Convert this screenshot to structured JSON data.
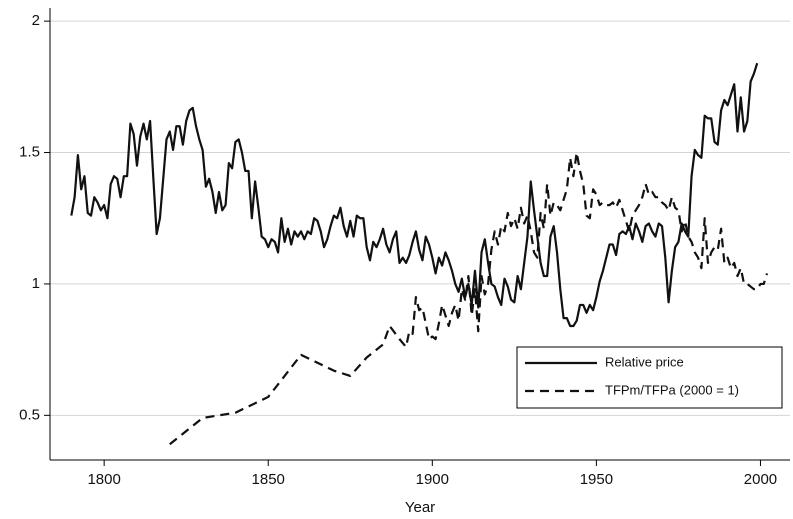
{
  "chart_data": {
    "type": "line",
    "x_label": "Year",
    "xlim": [
      1783.5,
      2009
    ],
    "ylim": [
      0.33,
      2.05
    ],
    "xticks": [
      1800,
      1850,
      1900,
      1950,
      2000
    ],
    "yticks": [
      0.5,
      1,
      1.5,
      2
    ],
    "grid": true,
    "legend": "lower right",
    "series": [
      {
        "name": "Relative price",
        "color": "#111111",
        "dash": "solid",
        "x": [
          1790,
          1791,
          1792,
          1793,
          1794,
          1795,
          1796,
          1797,
          1798,
          1799,
          1800,
          1801,
          1802,
          1803,
          1804,
          1805,
          1806,
          1807,
          1808,
          1809,
          1810,
          1811,
          1812,
          1813,
          1814,
          1815,
          1816,
          1817,
          1818,
          1819,
          1820,
          1821,
          1822,
          1823,
          1824,
          1825,
          1826,
          1827,
          1828,
          1829,
          1830,
          1831,
          1832,
          1833,
          1834,
          1835,
          1836,
          1837,
          1838,
          1839,
          1840,
          1841,
          1842,
          1843,
          1844,
          1845,
          1846,
          1847,
          1848,
          1849,
          1850,
          1851,
          1852,
          1853,
          1854,
          1855,
          1856,
          1857,
          1858,
          1859,
          1860,
          1861,
          1862,
          1863,
          1864,
          1865,
          1866,
          1867,
          1868,
          1869,
          1870,
          1871,
          1872,
          1873,
          1874,
          1875,
          1876,
          1877,
          1878,
          1879,
          1880,
          1881,
          1882,
          1883,
          1884,
          1885,
          1886,
          1887,
          1888,
          1889,
          1890,
          1891,
          1892,
          1893,
          1894,
          1895,
          1896,
          1897,
          1898,
          1899,
          1900,
          1901,
          1902,
          1903,
          1904,
          1905,
          1906,
          1907,
          1908,
          1909,
          1910,
          1911,
          1912,
          1913,
          1914,
          1915,
          1916,
          1917,
          1918,
          1919,
          1920,
          1921,
          1922,
          1923,
          1924,
          1925,
          1926,
          1927,
          1928,
          1929,
          1930,
          1931,
          1932,
          1933,
          1934,
          1935,
          1936,
          1937,
          1938,
          1939,
          1940,
          1941,
          1942,
          1943,
          1944,
          1945,
          1946,
          1947,
          1948,
          1949,
          1950,
          1951,
          1952,
          1953,
          1954,
          1955,
          1956,
          1957,
          1958,
          1959,
          1960,
          1961,
          1962,
          1963,
          1964,
          1965,
          1966,
          1967,
          1968,
          1969,
          1970,
          1971,
          1972,
          1973,
          1974,
          1975,
          1976,
          1977,
          1978,
          1979,
          1980,
          1981,
          1982,
          1983,
          1984,
          1985,
          1986,
          1987,
          1988,
          1989,
          1990,
          1991,
          1992,
          1993,
          1994,
          1995,
          1996,
          1997,
          1998,
          1999
        ],
        "values": [
          1.26,
          1.33,
          1.49,
          1.36,
          1.41,
          1.27,
          1.26,
          1.33,
          1.31,
          1.28,
          1.3,
          1.25,
          1.38,
          1.41,
          1.4,
          1.33,
          1.41,
          1.41,
          1.61,
          1.57,
          1.45,
          1.56,
          1.61,
          1.55,
          1.62,
          1.4,
          1.19,
          1.25,
          1.4,
          1.55,
          1.58,
          1.51,
          1.6,
          1.6,
          1.53,
          1.62,
          1.66,
          1.67,
          1.6,
          1.55,
          1.51,
          1.37,
          1.4,
          1.35,
          1.27,
          1.35,
          1.28,
          1.3,
          1.46,
          1.44,
          1.54,
          1.55,
          1.5,
          1.43,
          1.43,
          1.25,
          1.39,
          1.29,
          1.18,
          1.17,
          1.14,
          1.17,
          1.16,
          1.12,
          1.25,
          1.16,
          1.21,
          1.15,
          1.2,
          1.18,
          1.2,
          1.17,
          1.2,
          1.19,
          1.25,
          1.24,
          1.2,
          1.14,
          1.17,
          1.22,
          1.26,
          1.25,
          1.29,
          1.22,
          1.18,
          1.24,
          1.18,
          1.26,
          1.25,
          1.25,
          1.14,
          1.09,
          1.16,
          1.14,
          1.17,
          1.21,
          1.15,
          1.12,
          1.17,
          1.2,
          1.08,
          1.1,
          1.08,
          1.11,
          1.16,
          1.2,
          1.13,
          1.09,
          1.18,
          1.15,
          1.1,
          1.04,
          1.1,
          1.07,
          1.12,
          1.09,
          1.05,
          1.0,
          0.97,
          1.02,
          0.95,
          1.0,
          0.92,
          1.05,
          0.91,
          1.12,
          1.17,
          1.08,
          1.0,
          0.99,
          0.95,
          0.92,
          1.02,
          0.99,
          0.94,
          0.93,
          1.03,
          0.98,
          1.08,
          1.18,
          1.39,
          1.28,
          1.18,
          1.08,
          1.03,
          1.03,
          1.18,
          1.22,
          1.12,
          0.98,
          0.87,
          0.87,
          0.84,
          0.84,
          0.86,
          0.92,
          0.92,
          0.89,
          0.92,
          0.9,
          0.95,
          1.01,
          1.05,
          1.1,
          1.15,
          1.15,
          1.11,
          1.19,
          1.2,
          1.19,
          1.22,
          1.17,
          1.23,
          1.2,
          1.16,
          1.22,
          1.23,
          1.2,
          1.18,
          1.23,
          1.22,
          1.1,
          0.93,
          1.05,
          1.14,
          1.16,
          1.23,
          1.2,
          1.18,
          1.41,
          1.51,
          1.49,
          1.48,
          1.64,
          1.63,
          1.63,
          1.54,
          1.53,
          1.66,
          1.7,
          1.68,
          1.72,
          1.76,
          1.58,
          1.71,
          1.58,
          1.62,
          1.77,
          1.8,
          1.84
        ]
      },
      {
        "name": "TFPm/TFPa (2000 = 1)",
        "color": "#111111",
        "dash": "dashed",
        "x": [
          1820,
          1830,
          1840,
          1850,
          1860,
          1865,
          1870,
          1875,
          1880,
          1885,
          1887,
          1890,
          1892,
          1893,
          1894,
          1895,
          1896,
          1897,
          1898,
          1899,
          1900,
          1901,
          1902,
          1903,
          1904,
          1905,
          1906,
          1907,
          1908,
          1909,
          1910,
          1911,
          1912,
          1913,
          1914,
          1915,
          1916,
          1917,
          1918,
          1919,
          1920,
          1921,
          1922,
          1923,
          1924,
          1925,
          1926,
          1927,
          1928,
          1929,
          1930,
          1931,
          1932,
          1933,
          1934,
          1935,
          1936,
          1937,
          1938,
          1939,
          1940,
          1941,
          1942,
          1943,
          1944,
          1945,
          1946,
          1947,
          1948,
          1949,
          1950,
          1951,
          1952,
          1953,
          1954,
          1955,
          1956,
          1957,
          1958,
          1959,
          1960,
          1961,
          1962,
          1963,
          1964,
          1965,
          1966,
          1967,
          1968,
          1969,
          1970,
          1971,
          1972,
          1973,
          1974,
          1975,
          1976,
          1977,
          1978,
          1979,
          1980,
          1981,
          1982,
          1983,
          1984,
          1985,
          1986,
          1987,
          1988,
          1989,
          1990,
          1991,
          1992,
          1993,
          1994,
          1995,
          1996,
          1997,
          1998,
          1999,
          2000,
          2001,
          2002
        ],
        "values": [
          0.39,
          0.49,
          0.51,
          0.57,
          0.73,
          0.7,
          0.67,
          0.65,
          0.72,
          0.77,
          0.84,
          0.79,
          0.76,
          0.82,
          0.81,
          0.95,
          0.9,
          0.91,
          0.85,
          0.79,
          0.8,
          0.79,
          0.85,
          0.92,
          0.88,
          0.84,
          0.89,
          0.92,
          0.86,
          0.98,
          0.94,
          1.03,
          0.88,
          0.98,
          0.82,
          1.03,
          0.96,
          1.0,
          1.13,
          1.2,
          1.15,
          1.22,
          1.2,
          1.27,
          1.22,
          1.25,
          1.21,
          1.29,
          1.23,
          1.26,
          1.2,
          1.12,
          1.1,
          1.27,
          1.21,
          1.38,
          1.26,
          1.31,
          1.3,
          1.28,
          1.32,
          1.36,
          1.48,
          1.41,
          1.5,
          1.43,
          1.38,
          1.26,
          1.25,
          1.36,
          1.34,
          1.3,
          1.31,
          1.3,
          1.3,
          1.31,
          1.29,
          1.32,
          1.28,
          1.24,
          1.2,
          1.26,
          1.28,
          1.3,
          1.33,
          1.38,
          1.34,
          1.35,
          1.33,
          1.33,
          1.31,
          1.3,
          1.28,
          1.33,
          1.29,
          1.28,
          1.2,
          1.24,
          1.18,
          1.16,
          1.12,
          1.1,
          1.06,
          1.25,
          1.08,
          1.12,
          1.14,
          1.13,
          1.21,
          1.08,
          1.1,
          1.06,
          1.08,
          1.03,
          1.06,
          1.0,
          1.0,
          0.99,
          0.98,
          0.98,
          1.0,
          1.0,
          1.04
        ]
      }
    ]
  }
}
